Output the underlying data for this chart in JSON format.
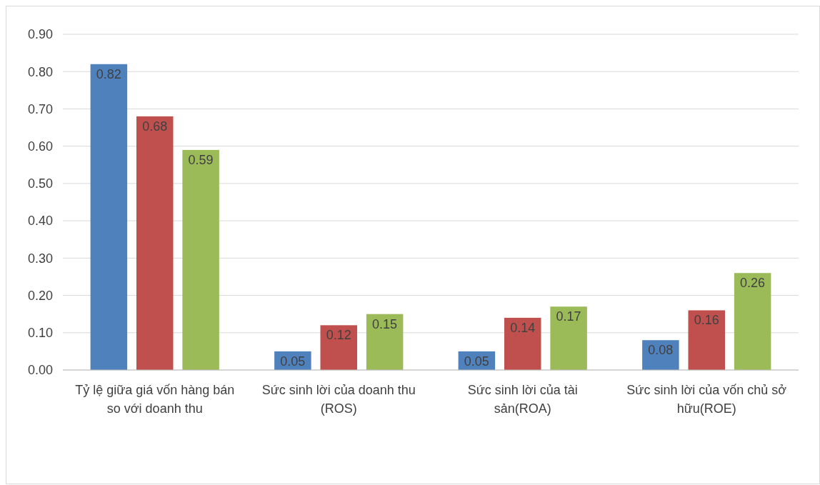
{
  "chart_data": {
    "type": "bar",
    "categories": [
      "Tỷ lệ giữa giá vốn hàng bán so với doanh thu",
      "Sức sinh lời của doanh thu (ROS)",
      "Sức sinh lời của tài sản(ROA)",
      "Sức sinh lời của vốn chủ sở hữu(ROE)"
    ],
    "series": [
      {
        "color": "#4f81bd",
        "values": [
          0.82,
          0.05,
          0.05,
          0.08
        ]
      },
      {
        "color": "#c0504d",
        "values": [
          0.68,
          0.12,
          0.14,
          0.16
        ]
      },
      {
        "color": "#9bbb59",
        "values": [
          0.59,
          0.15,
          0.17,
          0.26
        ]
      }
    ],
    "ylim": [
      0,
      0.9
    ],
    "yticks": [
      {
        "value": 0,
        "label": "0.00"
      },
      {
        "value": 0.1,
        "label": "0.10"
      },
      {
        "value": 0.2,
        "label": "0.20"
      },
      {
        "value": 0.3,
        "label": "0.30"
      },
      {
        "value": 0.4,
        "label": "0.40"
      },
      {
        "value": 0.5,
        "label": "0.50"
      },
      {
        "value": 0.6,
        "label": "0.60"
      },
      {
        "value": 0.7,
        "label": "0.70"
      },
      {
        "value": 0.8,
        "label": "0.80"
      },
      {
        "value": 0.9,
        "label": "0.90"
      }
    ],
    "grid": "y",
    "data_labels": true
  }
}
